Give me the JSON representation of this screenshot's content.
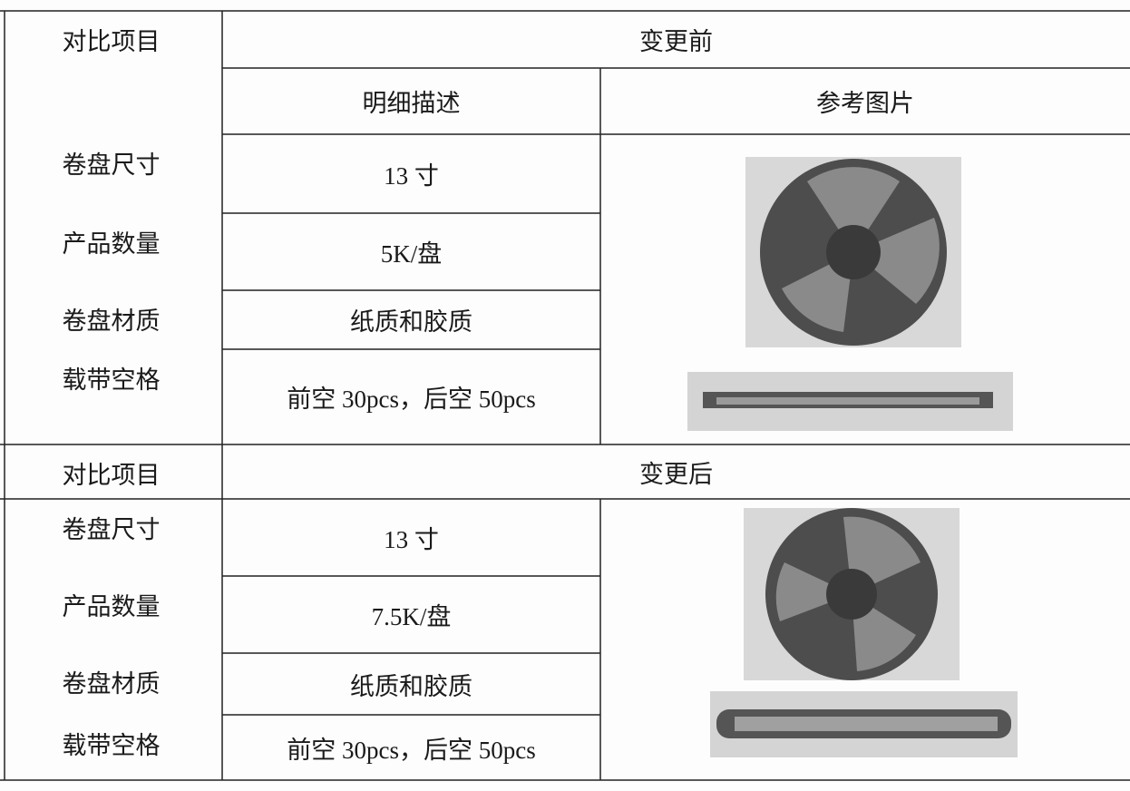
{
  "table": {
    "sections": [
      {
        "header": {
          "label": "对比项目",
          "title": "变更前"
        },
        "columns": [
          "明细描述",
          "参考图片"
        ],
        "rows": [
          [
            "卷盘尺寸",
            "13 寸"
          ],
          [
            "产品数量",
            "5K/盘"
          ],
          [
            "卷盘材质",
            "纸质和胶质"
          ],
          [
            "载带空格",
            "前空 30pcs，后空 50pcs"
          ]
        ]
      },
      {
        "header": {
          "label": "对比项目",
          "title": "变更后"
        },
        "rows": [
          [
            "卷盘尺寸",
            "13 寸"
          ],
          [
            "产品数量",
            "7.5K/盘"
          ],
          [
            "卷盘材质",
            "纸质和胶质"
          ],
          [
            "载带空格",
            "前空 30pcs，后空 50pcs"
          ]
        ]
      }
    ]
  }
}
